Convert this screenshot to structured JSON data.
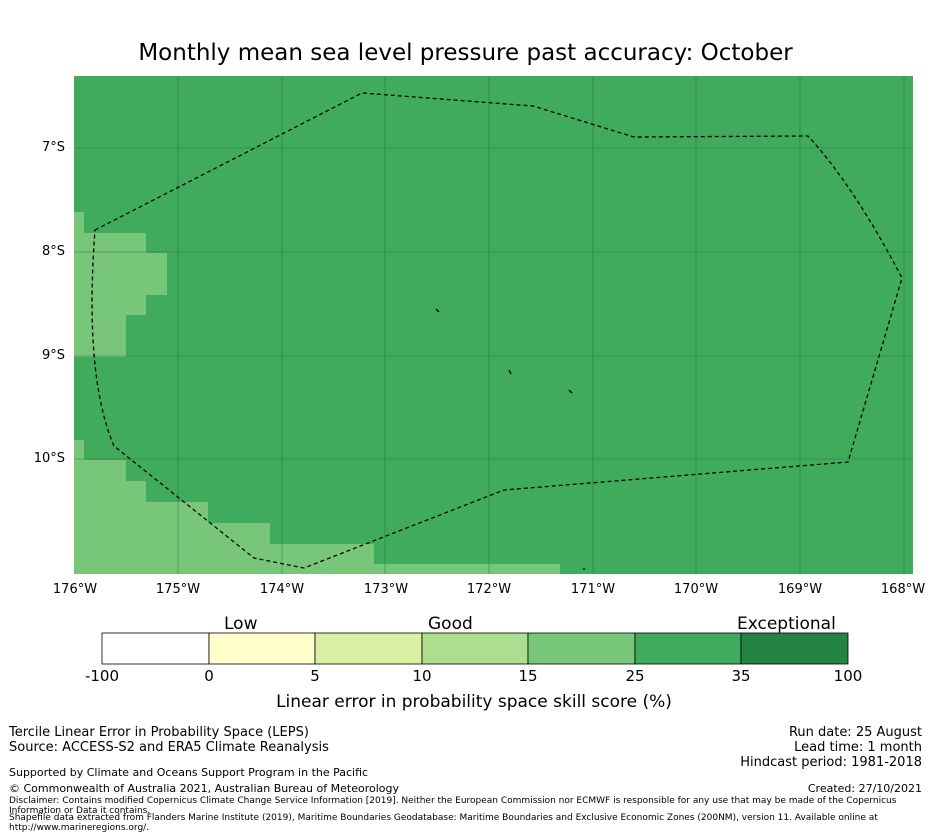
{
  "title": "Monthly mean sea level pressure past accuracy: October",
  "map": {
    "lat_labels": [
      "7°S",
      "8°S",
      "9°S",
      "10°S"
    ],
    "lon_labels": [
      "176°W",
      "175°W",
      "174°W",
      "173°W",
      "172°W",
      "171°W",
      "170°W",
      "169°W",
      "168°W"
    ],
    "extent": {
      "lon_west": -176,
      "lon_east": -167.9,
      "lat_north": -6.3,
      "lat_south": -11.1
    },
    "dominant_category": "25-35",
    "colors": {
      "c15_25": "#78c679",
      "c25_35": "#41ab5d",
      "eez_line": "#000000"
    }
  },
  "colorbar": {
    "categories": [
      "Low",
      "Good",
      "Exceptional"
    ],
    "ticks": [
      "-100",
      "0",
      "5",
      "10",
      "15",
      "25",
      "35",
      "100"
    ],
    "colors": [
      "#ffffff",
      "#ffffcc",
      "#d9f0a3",
      "#addd8e",
      "#78c679",
      "#41ab5d",
      "#238443"
    ],
    "label": "Linear error in probability space skill score (%)"
  },
  "footer": {
    "left": [
      "Tercile Linear Error in Probability Space (LEPS)",
      "Source: ACCESS-S2 and ERA5 Climate Reanalysis",
      "Supported by Climate and Oceans Support Program in the Pacific",
      "© Commonwealth of Australia 2021, Australian Bureau of Meteorology"
    ],
    "disclaimer": "Disclaimer: Contains modified Copernicus Climate Change Service Information [2019]. Neither the European Commission nor ECMWF is responsible for any use that may be made of the Copernicus Information or Data it contains.",
    "shapefile": "Shapefile data extracted from Flanders Marine Institute (2019), Maritime Boundaries Geodatabase: Maritime Boundaries and Exclusive Economic Zones (200NM), version 11. Available online at http://www.marineregions.org/.",
    "right": [
      "Run date: 25 August",
      "Lead time: 1 month",
      "Hindcast period: 1981-2018",
      "Created: 27/10/2021"
    ]
  }
}
